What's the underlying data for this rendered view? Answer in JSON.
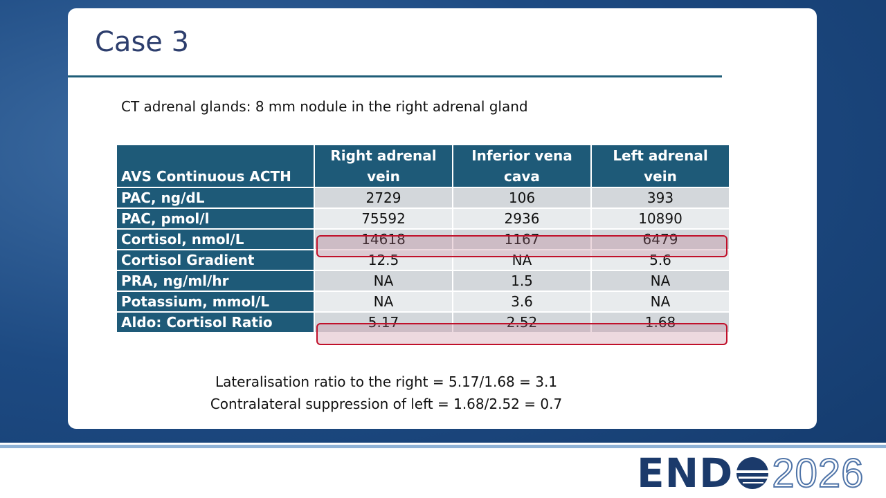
{
  "header": {
    "title": "Case 3"
  },
  "subtitle": "CT adrenal glands: 8 mm nodule in the right adrenal gland",
  "table": {
    "columns": [
      "AVS Continuous ACTH",
      "Right adrenal vein",
      "Inferior vena cava",
      "Left adrenal vein"
    ],
    "rows": [
      [
        "PAC, ng/dL",
        "2729",
        "106",
        "393"
      ],
      [
        "PAC, pmol/l",
        "75592",
        "2936",
        "10890"
      ],
      [
        "Cortisol, nmol/L",
        "14618",
        "1167",
        "6479"
      ],
      [
        "Cortisol Gradient",
        "12.5",
        "NA",
        "5.6"
      ],
      [
        "PRA, ng/ml/hr",
        "NA",
        "1.5",
        "NA"
      ],
      [
        "Potassium, mmol/L",
        "NA",
        "3.6",
        "NA"
      ],
      [
        "Aldo: Cortisol Ratio",
        "5.17",
        "2.52",
        "1.68"
      ]
    ]
  },
  "notes": [
    "Lateralisation ratio to the right = 5.17/1.68 = 3.1",
    "Contralateral suppression of left = 1.68/2.52 = 0.7"
  ],
  "logo": {
    "left": "END",
    "right": "2026"
  }
}
